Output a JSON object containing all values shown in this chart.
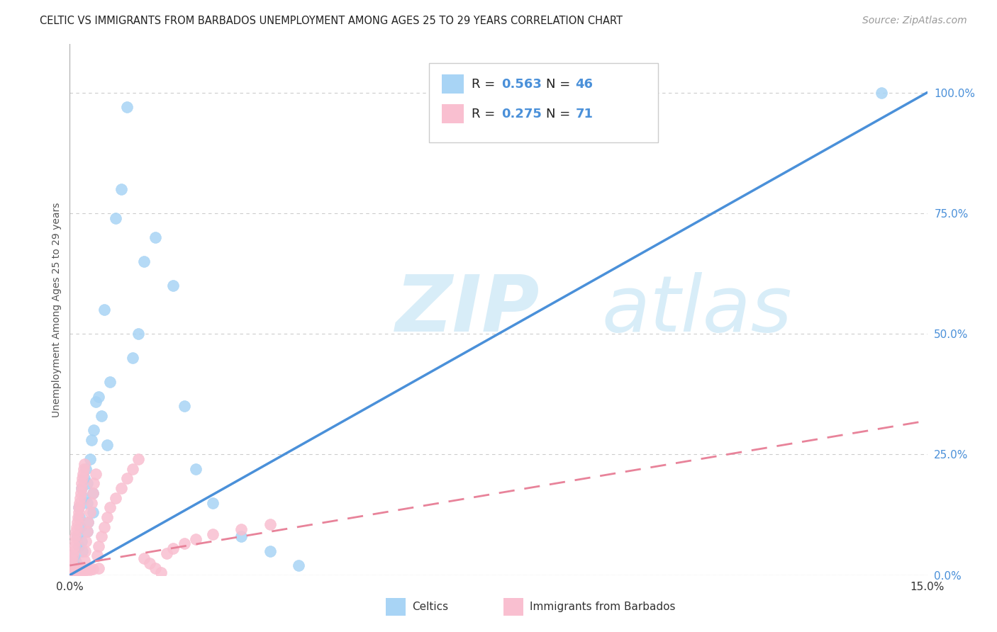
{
  "title": "CELTIC VS IMMIGRANTS FROM BARBADOS UNEMPLOYMENT AMONG AGES 25 TO 29 YEARS CORRELATION CHART",
  "source": "Source: ZipAtlas.com",
  "ylabel": "Unemployment Among Ages 25 to 29 years",
  "xlim": [
    0.0,
    15.0
  ],
  "ylim": [
    0.0,
    110.0
  ],
  "xticks": [
    0.0,
    2.142857,
    4.285714,
    6.428571,
    8.571429,
    10.714286,
    12.857143,
    15.0
  ],
  "xtick_labels": [
    "0.0%",
    "",
    "",
    "",
    "",
    "",
    "",
    "15.0%"
  ],
  "yticks_right": [
    0,
    25,
    50,
    75,
    100
  ],
  "celtics_R": 0.563,
  "celtics_N": 46,
  "barbados_R": 0.275,
  "barbados_N": 71,
  "celtics_color": "#A8D4F5",
  "barbados_color": "#F9BFD0",
  "celtics_line_color": "#4A90D9",
  "barbados_line_color": "#E8839A",
  "watermark_zip": "ZIP",
  "watermark_atlas": "atlas",
  "watermark_color": "#D8EDF8",
  "background": "#FFFFFF",
  "legend_label_1": "Celtics",
  "legend_label_2": "Immigrants from Barbados",
  "celtics_line_x0": 0.0,
  "celtics_line_y0": 0.0,
  "celtics_line_x1": 15.0,
  "celtics_line_y1": 100.0,
  "barbados_line_x0": 0.0,
  "barbados_line_y0": 2.0,
  "barbados_line_x1": 15.0,
  "barbados_line_y1": 32.0,
  "celtics_x": [
    0.05,
    0.08,
    0.1,
    0.1,
    0.12,
    0.13,
    0.15,
    0.15,
    0.17,
    0.18,
    0.2,
    0.2,
    0.22,
    0.25,
    0.25,
    0.28,
    0.3,
    0.3,
    0.3,
    0.32,
    0.35,
    0.38,
    0.4,
    0.4,
    0.42,
    0.45,
    0.5,
    0.55,
    0.6,
    0.65,
    0.7,
    0.8,
    0.9,
    1.0,
    1.1,
    1.2,
    1.3,
    1.5,
    1.8,
    2.0,
    2.2,
    2.5,
    3.0,
    3.5,
    4.0,
    14.2
  ],
  "celtics_y": [
    4.0,
    3.5,
    3.0,
    1.0,
    2.5,
    8.0,
    6.0,
    14.0,
    12.0,
    10.0,
    7.0,
    18.0,
    5.0,
    16.0,
    20.0,
    22.0,
    9.0,
    19.0,
    15.0,
    11.0,
    24.0,
    28.0,
    13.0,
    17.0,
    30.0,
    36.0,
    37.0,
    33.0,
    55.0,
    27.0,
    40.0,
    74.0,
    80.0,
    97.0,
    45.0,
    50.0,
    65.0,
    70.0,
    60.0,
    35.0,
    22.0,
    15.0,
    8.0,
    5.0,
    2.0,
    100.0
  ],
  "barbados_x": [
    0.02,
    0.04,
    0.05,
    0.06,
    0.07,
    0.08,
    0.09,
    0.1,
    0.1,
    0.11,
    0.12,
    0.13,
    0.14,
    0.15,
    0.15,
    0.16,
    0.17,
    0.18,
    0.19,
    0.2,
    0.2,
    0.21,
    0.22,
    0.23,
    0.24,
    0.25,
    0.26,
    0.27,
    0.28,
    0.3,
    0.32,
    0.35,
    0.38,
    0.4,
    0.42,
    0.45,
    0.48,
    0.5,
    0.55,
    0.6,
    0.65,
    0.7,
    0.8,
    0.9,
    1.0,
    1.1,
    1.2,
    1.3,
    1.4,
    1.5,
    1.6,
    1.7,
    1.8,
    2.0,
    2.2,
    2.5,
    3.0,
    3.5,
    0.03,
    0.03,
    0.04,
    0.05,
    0.06,
    0.1,
    0.15,
    0.2,
    0.25,
    0.3,
    0.35,
    0.4,
    0.5
  ],
  "barbados_y": [
    1.0,
    2.0,
    3.0,
    4.0,
    5.0,
    6.0,
    7.0,
    8.0,
    0.5,
    9.0,
    10.0,
    11.0,
    12.0,
    13.0,
    0.8,
    14.0,
    15.0,
    16.0,
    17.0,
    18.0,
    1.5,
    19.0,
    20.0,
    21.0,
    22.0,
    23.0,
    3.0,
    5.0,
    7.0,
    9.0,
    11.0,
    13.0,
    15.0,
    17.0,
    19.0,
    21.0,
    4.0,
    6.0,
    8.0,
    10.0,
    12.0,
    14.0,
    16.0,
    18.0,
    20.0,
    22.0,
    24.0,
    3.5,
    2.5,
    1.5,
    0.5,
    4.5,
    5.5,
    6.5,
    7.5,
    8.5,
    9.5,
    10.5,
    0.2,
    0.3,
    0.4,
    0.5,
    0.6,
    0.7,
    0.8,
    0.9,
    1.0,
    1.1,
    1.2,
    1.3,
    1.4
  ]
}
